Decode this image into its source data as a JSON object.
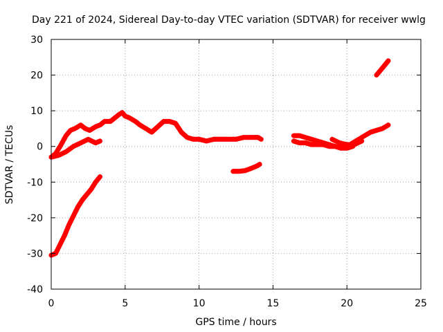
{
  "chart_data": {
    "type": "line",
    "title": "Day 221 of 2024, Sidereal Day-to-day VTEC variation (SDTVAR) for receiver wwlg",
    "xlabel": "GPS time / hours",
    "ylabel": "SDTVAR / TECUs",
    "xlim": [
      0,
      25
    ],
    "ylim": [
      -40,
      30
    ],
    "xticks": [
      0,
      5,
      10,
      15,
      20,
      25
    ],
    "yticks": [
      -40,
      -30,
      -20,
      -10,
      0,
      10,
      20,
      30
    ],
    "xtick_labels": [
      "0",
      "5",
      "10",
      "15",
      "20",
      "25"
    ],
    "ytick_labels": [
      "-40",
      "-30",
      "-20",
      "-10",
      "0",
      "10",
      "20",
      "30"
    ],
    "grid": true,
    "series_color": "#ff0000",
    "series": [
      {
        "name": "main-track",
        "x": [
          0.0,
          0.3,
          0.6,
          1.0,
          1.3,
          1.6,
          2.0,
          2.3,
          2.6,
          3.0,
          3.3,
          3.6,
          4.0,
          4.3,
          4.6,
          4.8,
          5.0,
          5.3,
          5.7,
          6.0,
          6.4,
          6.8,
          7.2,
          7.6,
          8.0,
          8.4,
          8.8,
          9.2,
          9.6,
          10.0,
          10.5,
          11.0,
          11.5,
          12.0,
          12.5,
          13.0,
          13.5,
          14.0,
          14.2
        ],
        "y": [
          -3.0,
          -2.0,
          0.0,
          3.0,
          4.5,
          5.0,
          6.0,
          5.0,
          4.5,
          5.5,
          6.0,
          7.0,
          7.0,
          8.0,
          9.0,
          9.5,
          8.5,
          8.0,
          7.0,
          6.0,
          5.0,
          4.0,
          5.5,
          7.0,
          7.0,
          6.5,
          4.0,
          2.5,
          2.0,
          2.0,
          1.5,
          2.0,
          2.0,
          2.0,
          2.0,
          2.5,
          2.5,
          2.5,
          2.0
        ]
      },
      {
        "name": "lower-branch",
        "x": [
          0.0,
          0.5,
          1.0,
          1.5,
          2.0,
          2.5,
          3.0,
          3.3
        ],
        "y": [
          -3.0,
          -2.5,
          -1.5,
          0.0,
          1.0,
          2.0,
          1.0,
          1.5
        ]
      },
      {
        "name": "steep-rise",
        "x": [
          0.0,
          0.3,
          0.6,
          0.9,
          1.2,
          1.5,
          1.8,
          2.1,
          2.4,
          2.7,
          3.0,
          3.3
        ],
        "y": [
          -30.5,
          -30.0,
          -27.5,
          -25.0,
          -22.0,
          -19.5,
          -17.0,
          -15.0,
          -13.5,
          -12.0,
          -10.0,
          -8.5
        ]
      },
      {
        "name": "short-segment",
        "x": [
          12.3,
          12.7,
          13.1,
          13.5,
          13.9,
          14.1
        ],
        "y": [
          -7.0,
          -7.0,
          -6.8,
          -6.2,
          -5.5,
          -5.0
        ]
      },
      {
        "name": "upper-track",
        "x": [
          16.4,
          16.8,
          17.2,
          17.6,
          18.0,
          18.4,
          18.8,
          19.2,
          19.6,
          20.0,
          20.4,
          20.8,
          21.2,
          21.6,
          22.0,
          22.4,
          22.8
        ],
        "y": [
          3.0,
          3.0,
          2.5,
          2.0,
          1.5,
          1.0,
          0.5,
          0.0,
          -0.5,
          0.0,
          1.0,
          2.0,
          3.0,
          4.0,
          4.5,
          5.0,
          6.0
        ]
      },
      {
        "name": "lower-track",
        "x": [
          16.4,
          16.8,
          17.2,
          17.6,
          18.0,
          18.4,
          18.8,
          19.2,
          19.6,
          20.0,
          20.4
        ],
        "y": [
          1.5,
          1.0,
          1.0,
          0.5,
          0.5,
          0.5,
          0.0,
          0.0,
          -0.5,
          -0.5,
          0.0
        ]
      },
      {
        "name": "dip-segment",
        "x": [
          19.0,
          19.5,
          20.0,
          20.5,
          21.0
        ],
        "y": [
          2.0,
          1.0,
          0.5,
          0.5,
          1.5
        ]
      },
      {
        "name": "top-segment",
        "x": [
          22.0,
          22.4,
          22.8
        ],
        "y": [
          20.0,
          22.0,
          24.0
        ]
      }
    ]
  }
}
